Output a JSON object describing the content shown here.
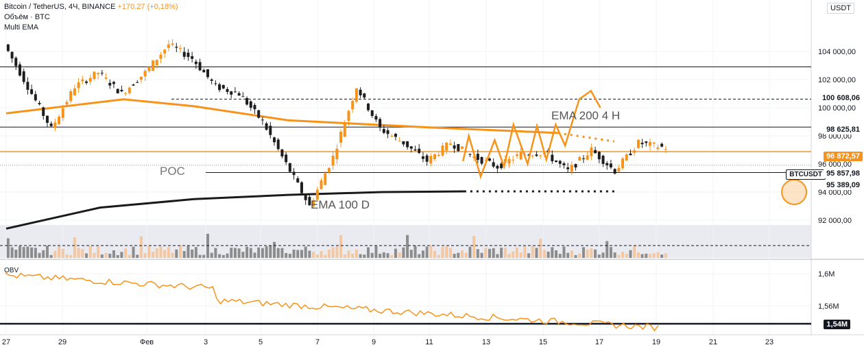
{
  "header": {
    "symbol_line": "Bitcoin / TetherUS, 4Ч, BINANCE",
    "change": "+170,27 (+0,18%)",
    "volume_label": "Объём · BTC",
    "ema_label": "Multi EMA"
  },
  "price_axis": {
    "currency": "USDT",
    "ticks": [
      "104 000,00",
      "102 000,00",
      "100 000,00",
      "98 000,00",
      "96 000,00",
      "94 000,00",
      "92 000,00"
    ]
  },
  "obv_panel": {
    "label": "OBV",
    "ticks": [
      "1,6M",
      "1,56M"
    ],
    "marker_label": "1,54M"
  },
  "time_axis": {
    "labels": [
      "27",
      "29",
      "Фев",
      "3",
      "5",
      "7",
      "9",
      "11",
      "13",
      "15",
      "17",
      "19",
      "21",
      "23"
    ]
  },
  "levels": [
    {
      "label": "100 608,06",
      "style": "dashed",
      "color": "#131722"
    },
    {
      "label": "98 625,81",
      "style": "solid",
      "color": "#131722"
    },
    {
      "label": "96 872,57",
      "style": "solid",
      "color": "#f7931a"
    },
    {
      "label": "95 389,09",
      "style": "solid",
      "color": "#131722"
    }
  ],
  "current_price": {
    "symbol": "BTCUSDT",
    "value": "95 857,98"
  },
  "annotations": {
    "ema200": "EMA 200 4 H",
    "ema100": "EMA 100 D",
    "poc": "POC"
  },
  "colors": {
    "up": "#f7931a",
    "down": "#1e1e1e",
    "ema200": "#f7931a",
    "ema100": "#1a1a1a",
    "volume_up": "#f4c7a1",
    "volume_down": "#8c8c8c",
    "obv": "#f7931a"
  },
  "chart_data": {
    "type": "candlestick",
    "timeframe": "4H",
    "x_labels": [
      "27",
      "29",
      "Фев",
      "3",
      "5",
      "7",
      "9",
      "11",
      "13",
      "15",
      "17",
      "19",
      "21",
      "23"
    ],
    "ylim": [
      91000,
      105000
    ],
    "price_path": [
      [
        0,
        104500
      ],
      [
        1,
        101500
      ],
      [
        2,
        98500
      ],
      [
        3,
        101500
      ],
      [
        4,
        102500
      ],
      [
        5,
        101000
      ],
      [
        6,
        102500
      ],
      [
        7,
        104500
      ],
      [
        8,
        103500
      ],
      [
        9,
        101500
      ],
      [
        10,
        101000
      ],
      [
        11,
        99000
      ],
      [
        12,
        96000
      ],
      [
        13,
        93000
      ],
      [
        14,
        96500
      ],
      [
        15,
        101500
      ],
      [
        16,
        98500
      ],
      [
        17,
        97500
      ],
      [
        18,
        96200
      ],
      [
        19,
        97500
      ],
      [
        20,
        96500
      ],
      [
        21,
        95800
      ],
      [
        22,
        96700
      ],
      [
        23,
        96800
      ],
      [
        24,
        95500
      ],
      [
        25,
        97000
      ],
      [
        26,
        95500
      ],
      [
        27,
        97500
      ],
      [
        28,
        97200
      ],
      [
        29,
        97000
      ],
      [
        30,
        96200
      ],
      [
        31,
        95500
      ],
      [
        32,
        94600
      ],
      [
        33,
        95300
      ],
      [
        34,
        95900
      ]
    ],
    "series": [
      {
        "name": "EMA 200 4 H",
        "type": "line",
        "points": [
          [
            0,
            99600
          ],
          [
            5,
            100600
          ],
          [
            8,
            100100
          ],
          [
            12,
            99100
          ],
          [
            18,
            98600
          ],
          [
            23.5,
            98200
          ]
        ]
      },
      {
        "name": "EMA 100 D",
        "type": "line",
        "points": [
          [
            0,
            91400
          ],
          [
            4,
            92900
          ],
          [
            8,
            93500
          ],
          [
            12,
            93800
          ],
          [
            16,
            94000
          ],
          [
            19.5,
            94050
          ]
        ]
      }
    ],
    "projection": {
      "zigzag": [
        [
          19.45,
          96200
        ],
        [
          19.7,
          98000
        ],
        [
          20.2,
          95100
        ],
        [
          20.8,
          97700
        ],
        [
          21.2,
          95800
        ],
        [
          21.6,
          98800
        ],
        [
          22.2,
          96000
        ],
        [
          22.6,
          98700
        ],
        [
          23.0,
          96300
        ],
        [
          23.4,
          98800
        ],
        [
          23.8,
          97300
        ],
        [
          24.4,
          100600
        ],
        [
          24.9,
          101200
        ],
        [
          25.3,
          100000
        ]
      ],
      "ema200_extension": [
        [
          23.5,
          98200
        ],
        [
          25.9,
          97600
        ]
      ],
      "ema100_extension": [
        [
          19.5,
          94050
        ],
        [
          25.9,
          94050
        ]
      ]
    },
    "obv_ylim": [
      1.535,
      1.615
    ]
  }
}
